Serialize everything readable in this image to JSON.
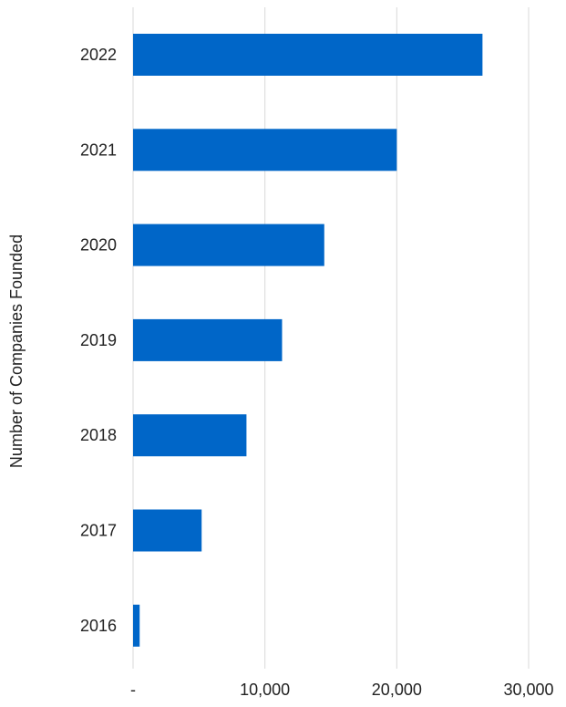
{
  "chart_data": {
    "type": "bar",
    "orientation": "horizontal",
    "categories": [
      "2022",
      "2021",
      "2020",
      "2019",
      "2018",
      "2017",
      "2016"
    ],
    "values": [
      26500,
      20000,
      14500,
      11300,
      8600,
      5200,
      500
    ],
    "title": "",
    "xlabel": "",
    "ylabel": "Number of Companies Founded",
    "xlim": [
      0,
      30000
    ],
    "x_ticks": [
      0,
      10000,
      20000,
      30000
    ],
    "x_tick_labels": [
      "-",
      "10,000",
      "20,000",
      "30,000"
    ],
    "grid": "vertical",
    "legend": "none",
    "colors": {
      "bar": "#0066c8",
      "grid": "#d9d9d9",
      "text": "#222222"
    }
  }
}
